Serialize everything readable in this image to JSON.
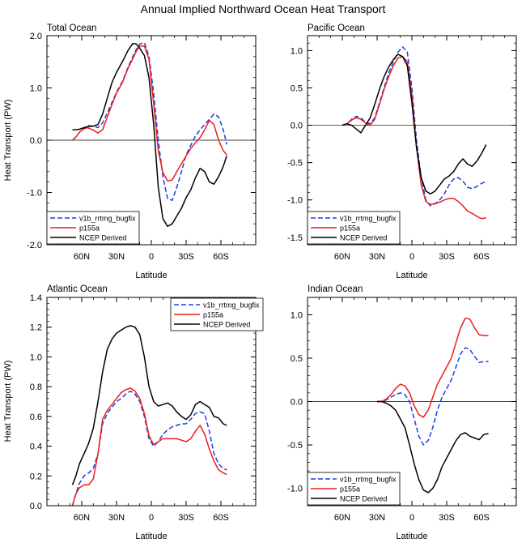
{
  "figure_title": "Annual Implied Northward Ocean Heat Transport",
  "legend_labels": [
    "v1b_rrtmg_bugfix",
    "p155a",
    "NCEP Derived"
  ],
  "series_colors": [
    "#1f3fe0",
    "#ee1c1c",
    "#000000"
  ],
  "chart_data": [
    {
      "type": "line",
      "title": "Total Ocean",
      "xlabel": "Latitude",
      "ylabel": "Heat Transport (PW)",
      "xlim": [
        90,
        -90
      ],
      "ylim": [
        -2.0,
        2.0
      ],
      "xticks": [
        60,
        30,
        0,
        -30,
        -60
      ],
      "xtick_labels": [
        "60N",
        "30N",
        "0",
        "30S",
        "60S"
      ],
      "yticks": [
        -2.0,
        -1.0,
        0.0,
        1.0,
        2.0
      ],
      "ytick_labels": [
        "-2.0",
        "-1.0",
        "0.0",
        "1.0",
        "2.0"
      ],
      "zero_line": true,
      "legend_position": "bottom-left",
      "series": [
        {
          "name": "v1b_rrtmg_bugfix",
          "x": [
            68,
            65,
            62,
            58,
            55,
            50,
            46,
            42,
            38,
            34,
            30,
            25,
            20,
            16,
            13,
            10,
            6,
            2,
            -2,
            -6,
            -10,
            -14,
            -18,
            -22,
            -26,
            -30,
            -34,
            -38,
            -42,
            -46,
            -50,
            -54,
            -58,
            -62,
            -65
          ],
          "values": [
            0.0,
            0.06,
            0.15,
            0.22,
            0.28,
            0.27,
            0.24,
            0.33,
            0.52,
            0.72,
            0.92,
            1.12,
            1.4,
            1.6,
            1.74,
            1.84,
            1.87,
            1.6,
            0.9,
            0.0,
            -0.7,
            -1.12,
            -1.15,
            -0.9,
            -0.6,
            -0.28,
            -0.1,
            0.08,
            0.2,
            0.3,
            0.4,
            0.5,
            0.45,
            0.2,
            -0.08
          ]
        },
        {
          "name": "p155a",
          "x": [
            68,
            65,
            62,
            58,
            55,
            50,
            46,
            42,
            38,
            34,
            30,
            25,
            20,
            16,
            13,
            10,
            6,
            2,
            -2,
            -6,
            -10,
            -14,
            -18,
            -22,
            -26,
            -30,
            -34,
            -38,
            -42,
            -46,
            -50,
            -54,
            -58,
            -62,
            -65
          ],
          "values": [
            0.0,
            0.06,
            0.15,
            0.22,
            0.24,
            0.19,
            0.14,
            0.2,
            0.44,
            0.68,
            0.9,
            1.1,
            1.38,
            1.56,
            1.7,
            1.8,
            1.8,
            1.55,
            0.7,
            -0.2,
            -0.62,
            -0.78,
            -0.76,
            -0.6,
            -0.45,
            -0.3,
            -0.16,
            -0.05,
            0.05,
            0.2,
            0.38,
            0.3,
            0.0,
            -0.2,
            -0.28
          ]
        },
        {
          "name": "NCEP Derived",
          "x": [
            68,
            65,
            62,
            58,
            55,
            50,
            46,
            42,
            38,
            34,
            30,
            25,
            20,
            16,
            13,
            10,
            6,
            2,
            -2,
            -6,
            -10,
            -14,
            -18,
            -22,
            -26,
            -30,
            -34,
            -38,
            -42,
            -46,
            -50,
            -54,
            -58,
            -62,
            -65
          ],
          "values": [
            0.2,
            0.2,
            0.21,
            0.24,
            0.26,
            0.27,
            0.3,
            0.5,
            0.8,
            1.1,
            1.3,
            1.5,
            1.72,
            1.85,
            1.84,
            1.76,
            1.62,
            1.2,
            0.3,
            -0.9,
            -1.5,
            -1.65,
            -1.6,
            -1.45,
            -1.3,
            -1.1,
            -0.95,
            -0.72,
            -0.54,
            -0.6,
            -0.8,
            -0.84,
            -0.7,
            -0.5,
            -0.3
          ]
        }
      ]
    },
    {
      "type": "line",
      "title": "Pacific Ocean",
      "xlabel": "Latitude",
      "ylabel": "",
      "xlim": [
        90,
        -90
      ],
      "ylim": [
        -1.6,
        1.2
      ],
      "xticks": [
        60,
        30,
        0,
        -30,
        -60
      ],
      "xtick_labels": [
        "60N",
        "30N",
        "0",
        "30S",
        "60S"
      ],
      "yticks": [
        -1.5,
        -1.0,
        -0.5,
        0.0,
        0.5,
        1.0
      ],
      "ytick_labels": [
        "-1.5",
        "-1.0",
        "-0.5",
        "0.0",
        "0.5",
        "1.0"
      ],
      "zero_line": true,
      "legend_position": "bottom-left",
      "series": [
        {
          "name": "v1b_rrtmg_bugfix",
          "x": [
            60,
            56,
            52,
            48,
            44,
            40,
            36,
            32,
            28,
            24,
            20,
            16,
            12,
            8,
            4,
            0,
            -4,
            -8,
            -12,
            -16,
            -20,
            -24,
            -28,
            -32,
            -36,
            -40,
            -44,
            -48,
            -52,
            -56,
            -60,
            -64
          ],
          "values": [
            0.0,
            0.02,
            0.08,
            0.12,
            0.1,
            0.04,
            0.02,
            0.1,
            0.3,
            0.5,
            0.7,
            0.85,
            0.98,
            1.05,
            0.98,
            0.5,
            -0.2,
            -0.7,
            -1.0,
            -1.08,
            -1.05,
            -1.0,
            -0.92,
            -0.8,
            -0.72,
            -0.7,
            -0.75,
            -0.83,
            -0.85,
            -0.82,
            -0.78,
            -0.75
          ]
        },
        {
          "name": "p155a",
          "x": [
            60,
            56,
            52,
            48,
            44,
            40,
            36,
            32,
            28,
            24,
            20,
            16,
            12,
            8,
            4,
            0,
            -4,
            -8,
            -12,
            -16,
            -20,
            -24,
            -28,
            -32,
            -36,
            -40,
            -44,
            -48,
            -52,
            -56,
            -60,
            -64
          ],
          "values": [
            0.0,
            0.02,
            0.07,
            0.1,
            0.08,
            0.03,
            0.0,
            0.08,
            0.28,
            0.48,
            0.65,
            0.8,
            0.9,
            0.92,
            0.85,
            0.4,
            -0.3,
            -0.8,
            -1.02,
            -1.06,
            -1.05,
            -1.03,
            -1.0,
            -0.98,
            -0.98,
            -1.02,
            -1.08,
            -1.15,
            -1.18,
            -1.22,
            -1.25,
            -1.24
          ]
        },
        {
          "name": "NCEP Derived",
          "x": [
            60,
            56,
            52,
            48,
            44,
            40,
            36,
            32,
            28,
            24,
            20,
            16,
            12,
            8,
            4,
            0,
            -4,
            -8,
            -12,
            -16,
            -20,
            -24,
            -28,
            -32,
            -36,
            -40,
            -44,
            -48,
            -52,
            -56,
            -60,
            -64
          ],
          "values": [
            0.0,
            0.02,
            0.0,
            -0.05,
            -0.1,
            0.0,
            0.1,
            0.28,
            0.48,
            0.65,
            0.78,
            0.88,
            0.95,
            0.92,
            0.8,
            0.3,
            -0.3,
            -0.7,
            -0.88,
            -0.92,
            -0.88,
            -0.8,
            -0.72,
            -0.68,
            -0.62,
            -0.52,
            -0.45,
            -0.52,
            -0.55,
            -0.48,
            -0.38,
            -0.26
          ]
        }
      ]
    },
    {
      "type": "line",
      "title": "Atlantic Ocean",
      "xlabel": "Latitude",
      "ylabel": "Heat Transport (PW)",
      "xlim": [
        90,
        -90
      ],
      "ylim": [
        0.0,
        1.4
      ],
      "xticks": [
        60,
        30,
        0,
        -30,
        -60
      ],
      "xtick_labels": [
        "60N",
        "30N",
        "0",
        "30S",
        "60S"
      ],
      "yticks": [
        0.0,
        0.2,
        0.4,
        0.6,
        0.8,
        1.0,
        1.2,
        1.4
      ],
      "ytick_labels": [
        "0.0",
        "0.2",
        "0.4",
        "0.6",
        "0.8",
        "1.0",
        "1.2",
        "1.4"
      ],
      "zero_line": false,
      "legend_position": "top-right",
      "series": [
        {
          "name": "v1b_rrtmg_bugfix",
          "x": [
            68,
            65,
            62,
            58,
            54,
            50,
            46,
            42,
            38,
            34,
            30,
            26,
            22,
            18,
            14,
            10,
            6,
            2,
            -2,
            -6,
            -10,
            -14,
            -18,
            -22,
            -26,
            -30,
            -34,
            -38,
            -42,
            -46,
            -50,
            -54,
            -58,
            -62,
            -65
          ],
          "values": [
            0.0,
            0.08,
            0.15,
            0.2,
            0.22,
            0.25,
            0.35,
            0.55,
            0.62,
            0.66,
            0.7,
            0.72,
            0.75,
            0.77,
            0.75,
            0.7,
            0.6,
            0.45,
            0.4,
            0.43,
            0.48,
            0.51,
            0.53,
            0.54,
            0.55,
            0.55,
            0.58,
            0.62,
            0.63,
            0.62,
            0.5,
            0.35,
            0.28,
            0.25,
            0.24
          ]
        },
        {
          "name": "p155a",
          "x": [
            68,
            65,
            62,
            58,
            54,
            50,
            46,
            42,
            38,
            34,
            30,
            26,
            22,
            18,
            14,
            10,
            6,
            2,
            -2,
            -6,
            -10,
            -14,
            -18,
            -22,
            -26,
            -30,
            -34,
            -38,
            -42,
            -46,
            -50,
            -54,
            -58,
            -62,
            -65
          ],
          "values": [
            0.0,
            0.08,
            0.12,
            0.14,
            0.14,
            0.18,
            0.35,
            0.58,
            0.64,
            0.68,
            0.72,
            0.76,
            0.78,
            0.79,
            0.77,
            0.72,
            0.62,
            0.47,
            0.41,
            0.43,
            0.45,
            0.45,
            0.45,
            0.45,
            0.44,
            0.43,
            0.45,
            0.5,
            0.54,
            0.48,
            0.38,
            0.3,
            0.24,
            0.22,
            0.21
          ]
        },
        {
          "name": "NCEP Derived",
          "x": [
            68,
            65,
            62,
            58,
            54,
            50,
            46,
            42,
            38,
            34,
            30,
            26,
            22,
            18,
            14,
            10,
            6,
            2,
            -2,
            -6,
            -10,
            -14,
            -18,
            -22,
            -26,
            -30,
            -34,
            -38,
            -42,
            -46,
            -50,
            -54,
            -58,
            -62,
            -65
          ],
          "values": [
            0.14,
            0.2,
            0.28,
            0.35,
            0.42,
            0.52,
            0.7,
            0.9,
            1.05,
            1.12,
            1.16,
            1.18,
            1.2,
            1.21,
            1.2,
            1.15,
            1.0,
            0.8,
            0.7,
            0.67,
            0.68,
            0.69,
            0.67,
            0.63,
            0.6,
            0.58,
            0.61,
            0.68,
            0.7,
            0.68,
            0.66,
            0.6,
            0.59,
            0.55,
            0.54
          ]
        }
      ]
    },
    {
      "type": "line",
      "title": "Indian Ocean",
      "xlabel": "Latitude",
      "ylabel": "",
      "xlim": [
        90,
        -90
      ],
      "ylim": [
        -1.2,
        1.2
      ],
      "xticks": [
        60,
        30,
        0,
        -30,
        -60
      ],
      "xtick_labels": [
        "60N",
        "30N",
        "0",
        "30S",
        "60S"
      ],
      "yticks": [
        -1.0,
        -0.5,
        0.0,
        0.5,
        1.0
      ],
      "ytick_labels": [
        "-1.0",
        "-0.5",
        "0.0",
        "0.5",
        "1.0"
      ],
      "zero_line": true,
      "legend_position": "bottom-left",
      "series": [
        {
          "name": "v1b_rrtmg_bugfix",
          "x": [
            30,
            26,
            22,
            18,
            14,
            10,
            6,
            2,
            -2,
            -6,
            -10,
            -14,
            -18,
            -22,
            -26,
            -30,
            -34,
            -38,
            -42,
            -46,
            -50,
            -54,
            -58,
            -62,
            -66
          ],
          "values": [
            0.0,
            0.0,
            0.02,
            0.05,
            0.08,
            0.1,
            0.08,
            0.0,
            -0.2,
            -0.4,
            -0.5,
            -0.45,
            -0.3,
            -0.1,
            0.05,
            0.15,
            0.25,
            0.4,
            0.55,
            0.62,
            0.6,
            0.52,
            0.45,
            0.46,
            0.46
          ]
        },
        {
          "name": "p155a",
          "x": [
            30,
            26,
            22,
            18,
            14,
            10,
            6,
            2,
            -2,
            -6,
            -10,
            -14,
            -18,
            -22,
            -26,
            -30,
            -34,
            -38,
            -42,
            -46,
            -50,
            -54,
            -58,
            -62,
            -66
          ],
          "values": [
            0.0,
            0.0,
            0.03,
            0.08,
            0.15,
            0.2,
            0.18,
            0.1,
            -0.05,
            -0.15,
            -0.18,
            -0.1,
            0.05,
            0.2,
            0.3,
            0.4,
            0.5,
            0.68,
            0.85,
            0.96,
            0.95,
            0.85,
            0.77,
            0.76,
            0.76
          ]
        },
        {
          "name": "NCEP Derived",
          "x": [
            30,
            26,
            22,
            18,
            14,
            10,
            6,
            2,
            -2,
            -6,
            -10,
            -14,
            -18,
            -22,
            -26,
            -30,
            -34,
            -38,
            -42,
            -46,
            -50,
            -54,
            -58,
            -62,
            -66
          ],
          "values": [
            0.0,
            0.0,
            -0.02,
            -0.05,
            -0.1,
            -0.2,
            -0.3,
            -0.5,
            -0.72,
            -0.9,
            -1.02,
            -1.05,
            -1.0,
            -0.9,
            -0.75,
            -0.65,
            -0.55,
            -0.45,
            -0.38,
            -0.36,
            -0.4,
            -0.42,
            -0.44,
            -0.38,
            -0.37
          ]
        }
      ]
    }
  ]
}
